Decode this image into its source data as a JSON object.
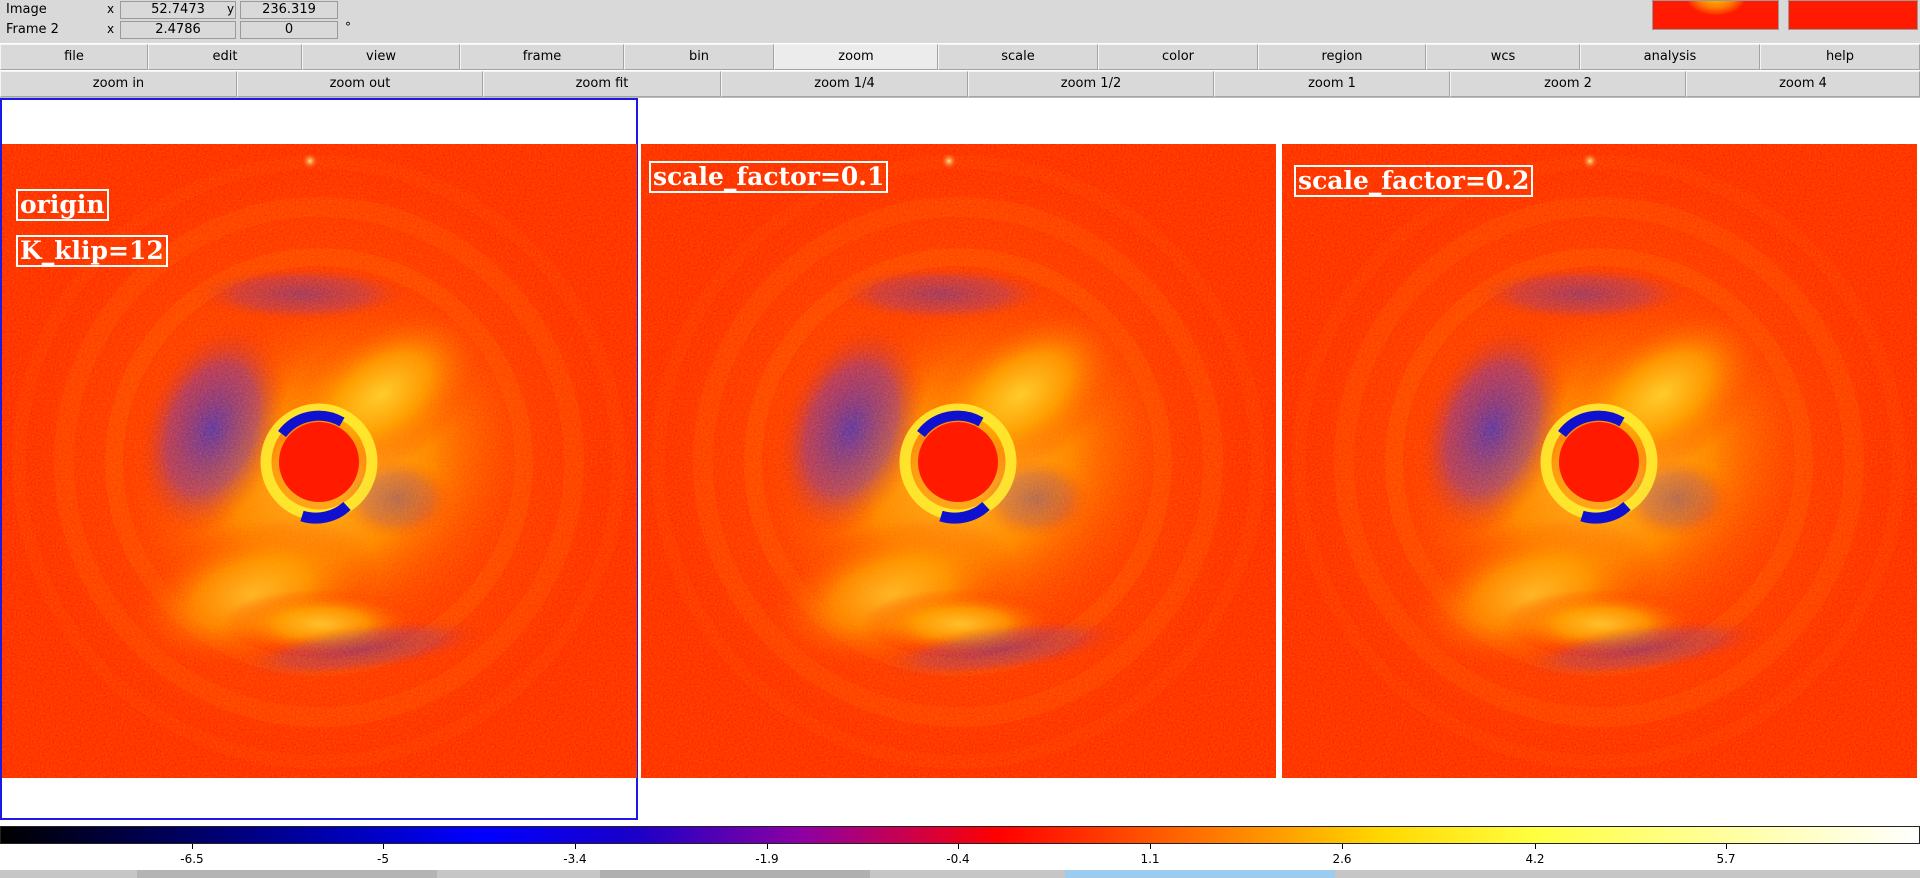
{
  "info_panel": {
    "image_label": "Image",
    "frame_label": "Frame 2",
    "x_axis": "x",
    "y_axis": "y",
    "image_x": "52.7473",
    "image_y": "236.319",
    "frame_x": "2.4786",
    "frame_angle": "0",
    "degree_symbol": "°"
  },
  "menu": [
    "file",
    "edit",
    "view",
    "frame",
    "bin",
    "zoom",
    "scale",
    "color",
    "region",
    "wcs",
    "analysis",
    "help"
  ],
  "active_menu": "zoom",
  "zoom_buttons": [
    "zoom in",
    "zoom out",
    "zoom fit",
    "zoom 1/4",
    "zoom 1/2",
    "zoom 1",
    "zoom 2",
    "zoom 4"
  ],
  "frames": [
    {
      "labels": [
        "origin",
        "K_klip=12"
      ],
      "selected": true
    },
    {
      "labels": [
        "scale_factor=0.1"
      ],
      "selected": false
    },
    {
      "labels": [
        "scale_factor=0.2"
      ],
      "selected": false
    }
  ],
  "colorbar": {
    "ticks": [
      "-6.5",
      "-5",
      "-3.4",
      "-1.9",
      "-0.4",
      "1.1",
      "2.6",
      "4.2",
      "5.7"
    ],
    "colormap": [
      "#000000",
      "#0000ff",
      "#9000a0",
      "#ff0000",
      "#ff9600",
      "#ffd800",
      "#ffffff"
    ]
  },
  "colors": {
    "background": "#ff1a00",
    "panel": "#d9d9d9",
    "selection": "#1a1ae6",
    "label_text": "#ffffff"
  }
}
